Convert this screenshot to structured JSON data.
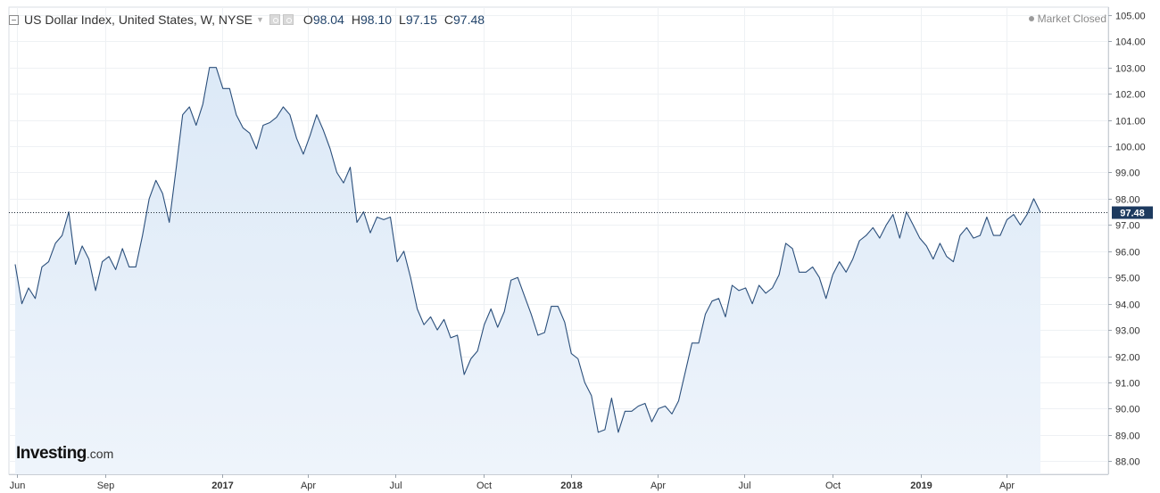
{
  "header": {
    "title": "US Dollar Index, United States, W, NYSE",
    "ohlc": [
      {
        "key": "O",
        "value": "98.04"
      },
      {
        "key": "H",
        "value": "98.10"
      },
      {
        "key": "L",
        "value": "97.15"
      },
      {
        "key": "C",
        "value": "97.48"
      }
    ]
  },
  "status": "Market Closed",
  "logo": {
    "main": "Investing",
    "sub": ".com"
  },
  "colors": {
    "line": "#2b4f7b",
    "fill": "#dce9f7",
    "price_tag": "#1d3a5f",
    "grid": "#eef1f4"
  },
  "chart_data": {
    "type": "area",
    "title": "US Dollar Index, United States, W, NYSE",
    "xlabel": "",
    "ylabel": "",
    "x_start": "2016-05-30",
    "interval_days": 7,
    "ylim": [
      87.5,
      105.3
    ],
    "yticks": [
      "105.00",
      "104.00",
      "103.00",
      "102.00",
      "101.00",
      "100.00",
      "99.00",
      "98.00",
      "97.00",
      "96.00",
      "95.00",
      "94.00",
      "93.00",
      "92.00",
      "91.00",
      "90.00",
      "89.00",
      "88.00"
    ],
    "xticks": [
      {
        "label": "Jun",
        "date": "2016-06-01"
      },
      {
        "label": "Sep",
        "date": "2016-09-01"
      },
      {
        "label": "2017",
        "date": "2017-01-01"
      },
      {
        "label": "Apr",
        "date": "2017-04-01"
      },
      {
        "label": "Jul",
        "date": "2017-07-01"
      },
      {
        "label": "Oct",
        "date": "2017-10-01"
      },
      {
        "label": "2018",
        "date": "2018-01-01"
      },
      {
        "label": "Apr",
        "date": "2018-04-01"
      },
      {
        "label": "Jul",
        "date": "2018-07-01"
      },
      {
        "label": "Oct",
        "date": "2018-10-01"
      },
      {
        "label": "2019",
        "date": "2019-01-01"
      },
      {
        "label": "Apr",
        "date": "2019-04-01"
      }
    ],
    "last_price": "97.48",
    "grid": true,
    "values": [
      95.5,
      94.0,
      94.6,
      94.2,
      95.4,
      95.6,
      96.3,
      96.6,
      97.5,
      95.5,
      96.2,
      95.7,
      94.5,
      95.6,
      95.8,
      95.3,
      96.1,
      95.4,
      95.4,
      96.6,
      98.0,
      98.7,
      98.2,
      97.1,
      99.1,
      101.2,
      101.5,
      100.8,
      101.6,
      103.0,
      103.0,
      102.2,
      102.2,
      101.2,
      100.7,
      100.5,
      99.9,
      100.8,
      100.9,
      101.1,
      101.5,
      101.2,
      100.3,
      99.7,
      100.4,
      101.2,
      100.6,
      99.9,
      99.0,
      98.6,
      99.2,
      97.1,
      97.5,
      96.7,
      97.3,
      97.2,
      97.3,
      95.6,
      96.0,
      95.0,
      93.8,
      93.2,
      93.5,
      93.0,
      93.4,
      92.7,
      92.8,
      91.3,
      91.9,
      92.2,
      93.2,
      93.8,
      93.1,
      93.7,
      94.9,
      95.0,
      94.3,
      93.6,
      92.8,
      92.9,
      93.9,
      93.9,
      93.3,
      92.1,
      91.9,
      91.0,
      90.5,
      89.1,
      89.2,
      90.4,
      89.1,
      89.9,
      89.9,
      90.1,
      90.2,
      89.5,
      90.0,
      90.1,
      89.8,
      90.3,
      91.4,
      92.5,
      92.5,
      93.6,
      94.1,
      94.2,
      93.5,
      94.7,
      94.5,
      94.6,
      94.0,
      94.7,
      94.4,
      94.6,
      95.1,
      96.3,
      96.1,
      95.2,
      95.2,
      95.4,
      95.0,
      94.2,
      95.1,
      95.6,
      95.2,
      95.7,
      96.4,
      96.6,
      96.9,
      96.5,
      97.0,
      97.4,
      96.5,
      97.5,
      97.0,
      96.5,
      96.2,
      95.7,
      96.3,
      95.8,
      95.6,
      96.6,
      96.9,
      96.5,
      96.6,
      97.3,
      96.6,
      96.6,
      97.2,
      97.4,
      97.0,
      97.4,
      98.0,
      97.48
    ]
  }
}
